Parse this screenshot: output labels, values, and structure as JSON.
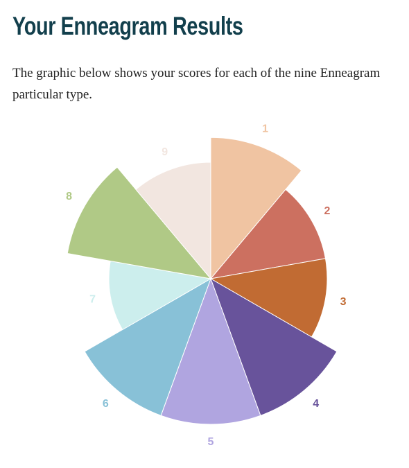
{
  "page": {
    "title": "Your Enneagram Results",
    "intro_line_1": "The graphic below shows your scores for each of the nine Enneagram",
    "intro_line_2": "particular type."
  },
  "chart_data": {
    "type": "polar-area",
    "title": "",
    "categories": [
      "1",
      "2",
      "3",
      "4",
      "5",
      "6",
      "7",
      "8",
      "9"
    ],
    "values": [
      97,
      80,
      80,
      100,
      100,
      100,
      70,
      100,
      80
    ],
    "colors": [
      "#f0c4a2",
      "#cc7060",
      "#c16b33",
      "#68539b",
      "#b0a5e0",
      "#88c1d7",
      "#cceeed",
      "#b0c986",
      "#f2e6e0"
    ],
    "ylim": [
      0,
      100
    ],
    "start": "top",
    "direction": "clockwise",
    "legend": "none",
    "grid": false
  }
}
